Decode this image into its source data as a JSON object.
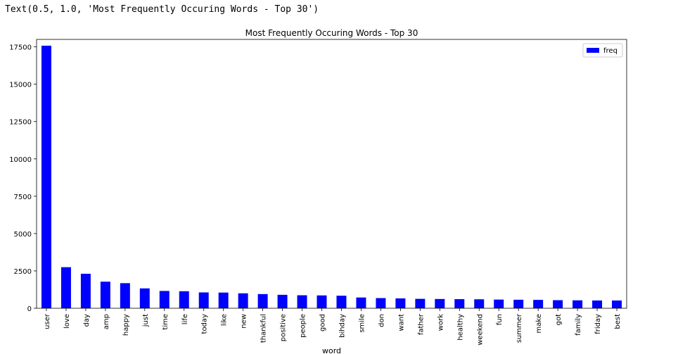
{
  "output_text": "Text(0.5, 1.0, 'Most Frequently Occuring Words - Top 30')",
  "chart_data": {
    "type": "bar",
    "title": "Most Frequently Occuring Words - Top 30",
    "xlabel": "word",
    "ylabel": "",
    "categories": [
      "user",
      "love",
      "day",
      "amp",
      "happy",
      "just",
      "time",
      "life",
      "today",
      "like",
      "new",
      "thankful",
      "positive",
      "people",
      "good",
      "bihday",
      "smile",
      "don",
      "want",
      "father",
      "work",
      "healthy",
      "weekend",
      "fun",
      "summer",
      "make",
      "got",
      "family",
      "friday",
      "best"
    ],
    "series": [
      {
        "name": "freq",
        "color": "#0000ff",
        "values": [
          17580,
          2750,
          2310,
          1780,
          1680,
          1330,
          1160,
          1140,
          1060,
          1050,
          1000,
          950,
          900,
          870,
          860,
          840,
          720,
          680,
          660,
          630,
          620,
          610,
          600,
          580,
          570,
          560,
          540,
          530,
          520,
          520
        ]
      }
    ],
    "yticks": [
      0,
      2500,
      5000,
      7500,
      10000,
      12500,
      15000,
      17500
    ],
    "ylim": [
      0,
      18000
    ],
    "legend_position": "top-right",
    "grid": false
  }
}
